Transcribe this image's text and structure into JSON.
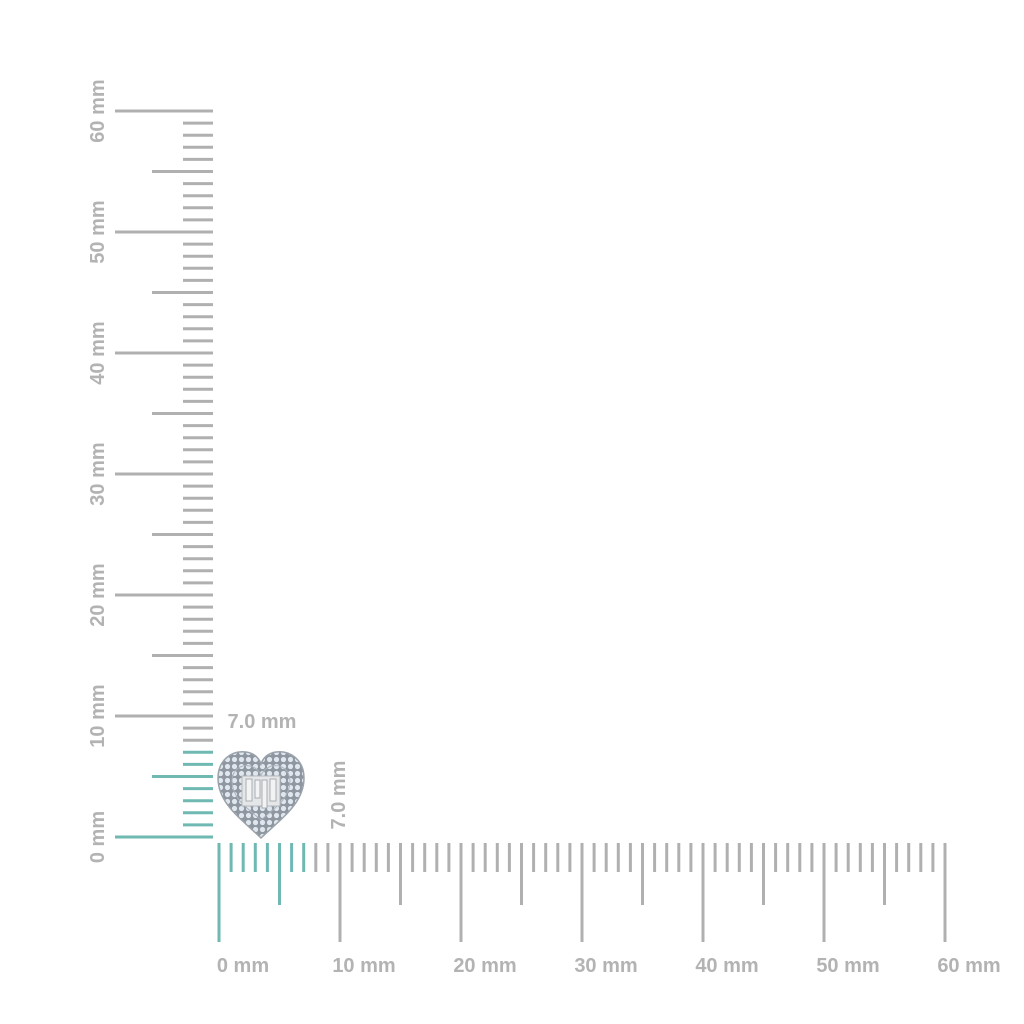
{
  "units": "mm",
  "vertical_ruler": {
    "labels": [
      "0 mm",
      "10 mm",
      "20 mm",
      "30 mm",
      "40 mm",
      "50 mm",
      "60 mm"
    ],
    "max_mm": 60
  },
  "horizontal_ruler": {
    "labels": [
      "0 mm",
      "10 mm",
      "20 mm",
      "30 mm",
      "40 mm",
      "50 mm",
      "60 mm"
    ],
    "max_mm": 60
  },
  "product": {
    "name": "heart-earring",
    "width_label": "7.0 mm",
    "height_label": "7.0 mm",
    "width_mm": 7.0,
    "height_mm": 7.0
  },
  "colors": {
    "tick": "#b0b0b0",
    "highlight": "#6fb9b2",
    "label": "#b3b3b3"
  }
}
